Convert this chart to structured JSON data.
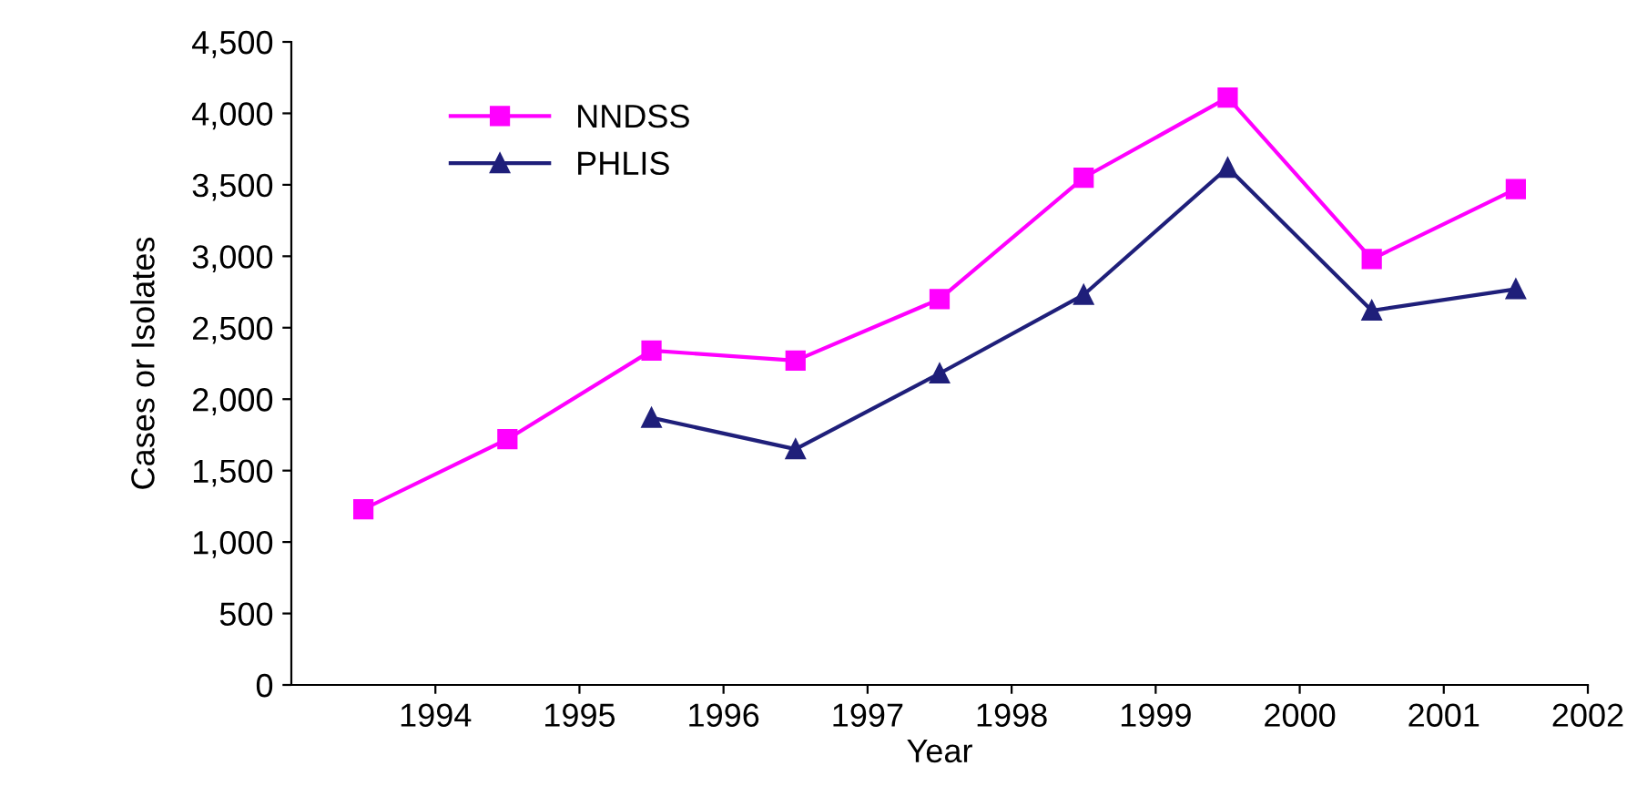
{
  "chart_data": {
    "type": "line",
    "xlabel": "Year",
    "ylabel": "Cases or Isolates",
    "xlim": [
      1993,
      2002
    ],
    "xticks": [
      1994,
      1995,
      1996,
      1997,
      1998,
      1999,
      2000,
      2001,
      2002
    ],
    "ylim": [
      0,
      4500
    ],
    "yticks": [
      0,
      {
        "value": 500,
        "label": "500"
      },
      {
        "value": 1000,
        "label": "1,000"
      },
      {
        "value": 1500,
        "label": "1,500"
      },
      {
        "value": 2000,
        "label": "2,000"
      },
      {
        "value": 2500,
        "label": "2,500"
      },
      {
        "value": 3000,
        "label": "3,000"
      },
      {
        "value": 3500,
        "label": "3,500"
      },
      {
        "value": 4000,
        "label": "4,000"
      },
      {
        "value": 4500,
        "label": "4,500"
      }
    ],
    "grid": false,
    "legend": "top left",
    "line_style": "solid",
    "series": [
      {
        "name": "NNDSS",
        "color": "#ff00ff",
        "marker": "square",
        "x": [
          1993.5,
          1994.5,
          1995.5,
          1996.5,
          1997.5,
          1998.5,
          1999.5,
          2000.5,
          2001.5
        ],
        "values": [
          1230,
          1720,
          2340,
          2270,
          2700,
          3550,
          4110,
          2980,
          3470
        ]
      },
      {
        "name": "PHLIS",
        "color": "#1f1f7a",
        "marker": "triangle",
        "x": [
          1995.5,
          1996.5,
          1997.5,
          1998.5,
          1999.5,
          2000.5,
          2001.5
        ],
        "values": [
          1870,
          1650,
          2180,
          2730,
          3620,
          2620,
          2770
        ]
      }
    ]
  }
}
